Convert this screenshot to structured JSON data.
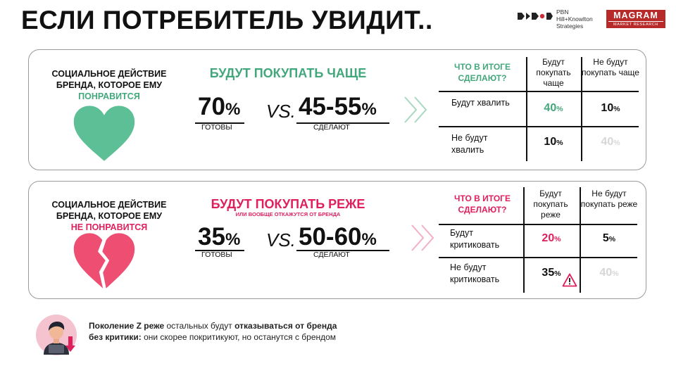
{
  "title": "ЕСЛИ ПОТРЕБИТЕЛЬ УВИДИТ..",
  "logos": {
    "pbn_text": "PBN\nHill+Knowlton\nStrategies",
    "magram_main": "MAGRAM",
    "magram_sub": "MARKET RESEARCH"
  },
  "colors": {
    "green": "#43a77c",
    "pink": "#e01f5d",
    "gray_value": "#d6d6d6",
    "logo_red": "#b82a2a"
  },
  "panel_like": {
    "side_line1": "СОЦИАЛЬНОЕ ДЕЙСТВИЕ",
    "side_line2": "БРЕНДА, КОТОРОЕ ЕМУ",
    "side_line3": "ПОНРАВИТСЯ",
    "icon": "green-heart-icon",
    "headline": "БУДУТ ПОКУПАТЬ ЧАЩЕ",
    "ready_value": "70",
    "ready_unit": "%",
    "ready_caption": "ГОТОВЫ",
    "vs": "VS.",
    "do_value": "45-55",
    "do_unit": "%",
    "do_caption": "СДЕЛАЮТ",
    "table": {
      "question": "ЧТО В ИТОГЕ СДЕЛАЮТ?",
      "col1": "Будут покупать чаще",
      "col2": "Не будут покупать чаще",
      "row1_label": "Будут хвалить",
      "row2_label": "Не будут хвалить",
      "r1c1": "40",
      "r1c2": "10",
      "r2c1": "10",
      "r2c2": "40",
      "unit": "%"
    }
  },
  "panel_dislike": {
    "side_line1": "СОЦИАЛЬНОЕ ДЕЙСТВИЕ",
    "side_line2": "БРЕНДА, КОТОРОЕ ЕМУ",
    "side_line3": "НЕ ПОНРАВИТСЯ",
    "icon": "broken-heart-icon",
    "headline": "БУДУТ ПОКУПАТЬ РЕЖЕ",
    "subline": "ИЛИ ВООБЩЕ ОТКАЖУТСЯ ОТ БРЕНДА",
    "ready_value": "35",
    "ready_unit": "%",
    "ready_caption": "ГОТОВЫ",
    "vs": "VS.",
    "do_value": "50-60",
    "do_unit": "%",
    "do_caption": "СДЕЛАЮТ",
    "table": {
      "question": "ЧТО В ИТОГЕ СДЕЛАЮТ?",
      "col1": "Будут покупать реже",
      "col2": "Не будут покупать реже",
      "row1_label": "Будут критиковать",
      "row2_label": "Не будут критиковать",
      "r1c1": "20",
      "r1c2": "5",
      "r2c1": "35",
      "r2c2": "40",
      "unit": "%"
    }
  },
  "note": {
    "part1": "Поколение Z реже",
    "part2": " остальных будут ",
    "part3": "отказываться от бренда без критики:",
    "part4": " они скорее покритикуют, но останутся с брендом"
  }
}
